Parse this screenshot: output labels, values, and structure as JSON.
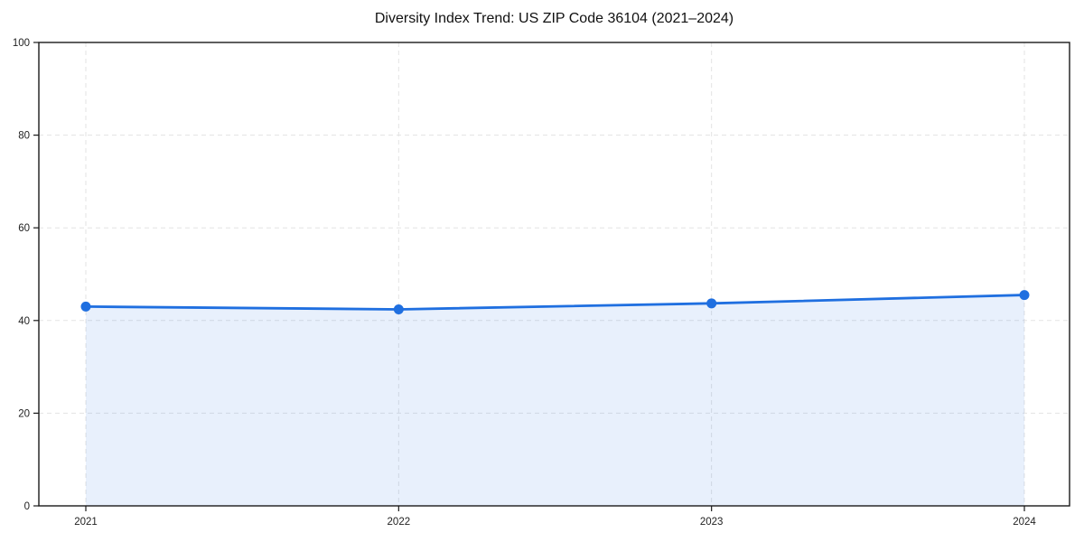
{
  "chart_data": {
    "type": "area",
    "title": "Diversity Index Trend: US ZIP Code 36104 (2021–2024)",
    "x_labels": [
      "2021",
      "2022",
      "2023",
      "2024"
    ],
    "series": [
      {
        "name": "Diversity Index",
        "values": [
          43.0,
          42.4,
          43.7,
          45.5
        ]
      }
    ],
    "xlabel": "",
    "ylabel": "",
    "ylim": [
      0,
      100
    ],
    "yticks": [
      0,
      20,
      40,
      60,
      80,
      100
    ],
    "grid": "dashed",
    "legend": "none",
    "colors": {
      "line": "#1f6fe0",
      "marker": "#1f6fe0",
      "fill": "rgba(31,111,224,0.10)",
      "gridline": "#e3e3e3",
      "spine": "#1a1a1a",
      "tick_label": "#222222",
      "background": "#ffffff"
    }
  }
}
